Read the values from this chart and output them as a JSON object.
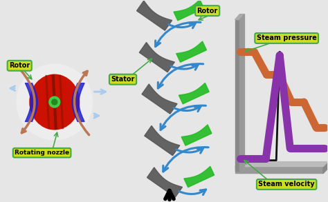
{
  "bg_color": "#e6e6e6",
  "rotor_label": "Rotor",
  "stator_label": "Stator",
  "nozzle_label": "Rotating nozzle",
  "rotor_label2": "Rotor",
  "steam_pressure_label": "Steam pressure",
  "steam_velocity_label": "Steam velocity",
  "rotor_color": "#cc1100",
  "rotor_ring_color": "#2222cc",
  "rotor_arrow_color": "#bb7755",
  "blade_gray": "#555555",
  "blade_green": "#22bb22",
  "blade_blue": "#3388cc",
  "pressure_color": "#cc6633",
  "velocity_color": "#8833aa",
  "label_bg": "#ccdd22",
  "label_border": "#44aa44",
  "n_blade_pairs": 5
}
